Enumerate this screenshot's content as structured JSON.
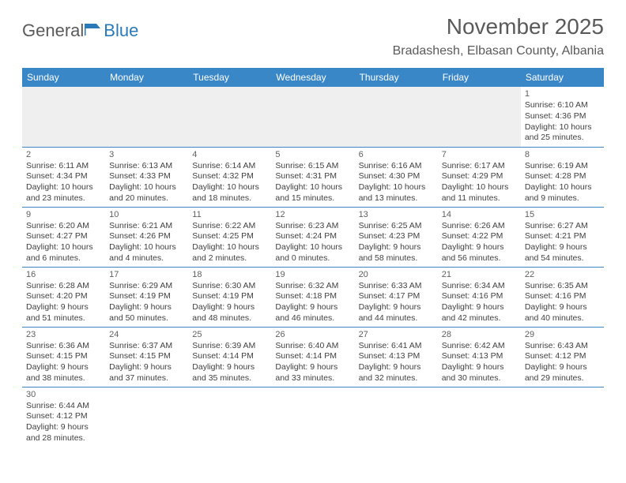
{
  "logo": {
    "part1": "General",
    "part2": "Blue"
  },
  "title": "November 2025",
  "location": "Bradashesh, Elbasan County, Albania",
  "colors": {
    "header_bg": "#3a87c8",
    "header_fg": "#ffffff",
    "text": "#404040",
    "blank_bg": "#efefef"
  },
  "weekdays": [
    "Sunday",
    "Monday",
    "Tuesday",
    "Wednesday",
    "Thursday",
    "Friday",
    "Saturday"
  ],
  "weeks": [
    [
      null,
      null,
      null,
      null,
      null,
      null,
      {
        "n": "1",
        "sr": "Sunrise: 6:10 AM",
        "ss": "Sunset: 4:36 PM",
        "dl": "Daylight: 10 hours and 25 minutes."
      }
    ],
    [
      {
        "n": "2",
        "sr": "Sunrise: 6:11 AM",
        "ss": "Sunset: 4:34 PM",
        "dl": "Daylight: 10 hours and 23 minutes."
      },
      {
        "n": "3",
        "sr": "Sunrise: 6:13 AM",
        "ss": "Sunset: 4:33 PM",
        "dl": "Daylight: 10 hours and 20 minutes."
      },
      {
        "n": "4",
        "sr": "Sunrise: 6:14 AM",
        "ss": "Sunset: 4:32 PM",
        "dl": "Daylight: 10 hours and 18 minutes."
      },
      {
        "n": "5",
        "sr": "Sunrise: 6:15 AM",
        "ss": "Sunset: 4:31 PM",
        "dl": "Daylight: 10 hours and 15 minutes."
      },
      {
        "n": "6",
        "sr": "Sunrise: 6:16 AM",
        "ss": "Sunset: 4:30 PM",
        "dl": "Daylight: 10 hours and 13 minutes."
      },
      {
        "n": "7",
        "sr": "Sunrise: 6:17 AM",
        "ss": "Sunset: 4:29 PM",
        "dl": "Daylight: 10 hours and 11 minutes."
      },
      {
        "n": "8",
        "sr": "Sunrise: 6:19 AM",
        "ss": "Sunset: 4:28 PM",
        "dl": "Daylight: 10 hours and 9 minutes."
      }
    ],
    [
      {
        "n": "9",
        "sr": "Sunrise: 6:20 AM",
        "ss": "Sunset: 4:27 PM",
        "dl": "Daylight: 10 hours and 6 minutes."
      },
      {
        "n": "10",
        "sr": "Sunrise: 6:21 AM",
        "ss": "Sunset: 4:26 PM",
        "dl": "Daylight: 10 hours and 4 minutes."
      },
      {
        "n": "11",
        "sr": "Sunrise: 6:22 AM",
        "ss": "Sunset: 4:25 PM",
        "dl": "Daylight: 10 hours and 2 minutes."
      },
      {
        "n": "12",
        "sr": "Sunrise: 6:23 AM",
        "ss": "Sunset: 4:24 PM",
        "dl": "Daylight: 10 hours and 0 minutes."
      },
      {
        "n": "13",
        "sr": "Sunrise: 6:25 AM",
        "ss": "Sunset: 4:23 PM",
        "dl": "Daylight: 9 hours and 58 minutes."
      },
      {
        "n": "14",
        "sr": "Sunrise: 6:26 AM",
        "ss": "Sunset: 4:22 PM",
        "dl": "Daylight: 9 hours and 56 minutes."
      },
      {
        "n": "15",
        "sr": "Sunrise: 6:27 AM",
        "ss": "Sunset: 4:21 PM",
        "dl": "Daylight: 9 hours and 54 minutes."
      }
    ],
    [
      {
        "n": "16",
        "sr": "Sunrise: 6:28 AM",
        "ss": "Sunset: 4:20 PM",
        "dl": "Daylight: 9 hours and 51 minutes."
      },
      {
        "n": "17",
        "sr": "Sunrise: 6:29 AM",
        "ss": "Sunset: 4:19 PM",
        "dl": "Daylight: 9 hours and 50 minutes."
      },
      {
        "n": "18",
        "sr": "Sunrise: 6:30 AM",
        "ss": "Sunset: 4:19 PM",
        "dl": "Daylight: 9 hours and 48 minutes."
      },
      {
        "n": "19",
        "sr": "Sunrise: 6:32 AM",
        "ss": "Sunset: 4:18 PM",
        "dl": "Daylight: 9 hours and 46 minutes."
      },
      {
        "n": "20",
        "sr": "Sunrise: 6:33 AM",
        "ss": "Sunset: 4:17 PM",
        "dl": "Daylight: 9 hours and 44 minutes."
      },
      {
        "n": "21",
        "sr": "Sunrise: 6:34 AM",
        "ss": "Sunset: 4:16 PM",
        "dl": "Daylight: 9 hours and 42 minutes."
      },
      {
        "n": "22",
        "sr": "Sunrise: 6:35 AM",
        "ss": "Sunset: 4:16 PM",
        "dl": "Daylight: 9 hours and 40 minutes."
      }
    ],
    [
      {
        "n": "23",
        "sr": "Sunrise: 6:36 AM",
        "ss": "Sunset: 4:15 PM",
        "dl": "Daylight: 9 hours and 38 minutes."
      },
      {
        "n": "24",
        "sr": "Sunrise: 6:37 AM",
        "ss": "Sunset: 4:15 PM",
        "dl": "Daylight: 9 hours and 37 minutes."
      },
      {
        "n": "25",
        "sr": "Sunrise: 6:39 AM",
        "ss": "Sunset: 4:14 PM",
        "dl": "Daylight: 9 hours and 35 minutes."
      },
      {
        "n": "26",
        "sr": "Sunrise: 6:40 AM",
        "ss": "Sunset: 4:14 PM",
        "dl": "Daylight: 9 hours and 33 minutes."
      },
      {
        "n": "27",
        "sr": "Sunrise: 6:41 AM",
        "ss": "Sunset: 4:13 PM",
        "dl": "Daylight: 9 hours and 32 minutes."
      },
      {
        "n": "28",
        "sr": "Sunrise: 6:42 AM",
        "ss": "Sunset: 4:13 PM",
        "dl": "Daylight: 9 hours and 30 minutes."
      },
      {
        "n": "29",
        "sr": "Sunrise: 6:43 AM",
        "ss": "Sunset: 4:12 PM",
        "dl": "Daylight: 9 hours and 29 minutes."
      }
    ],
    [
      {
        "n": "30",
        "sr": "Sunrise: 6:44 AM",
        "ss": "Sunset: 4:12 PM",
        "dl": "Daylight: 9 hours and 28 minutes."
      },
      null,
      null,
      null,
      null,
      null,
      null
    ]
  ]
}
